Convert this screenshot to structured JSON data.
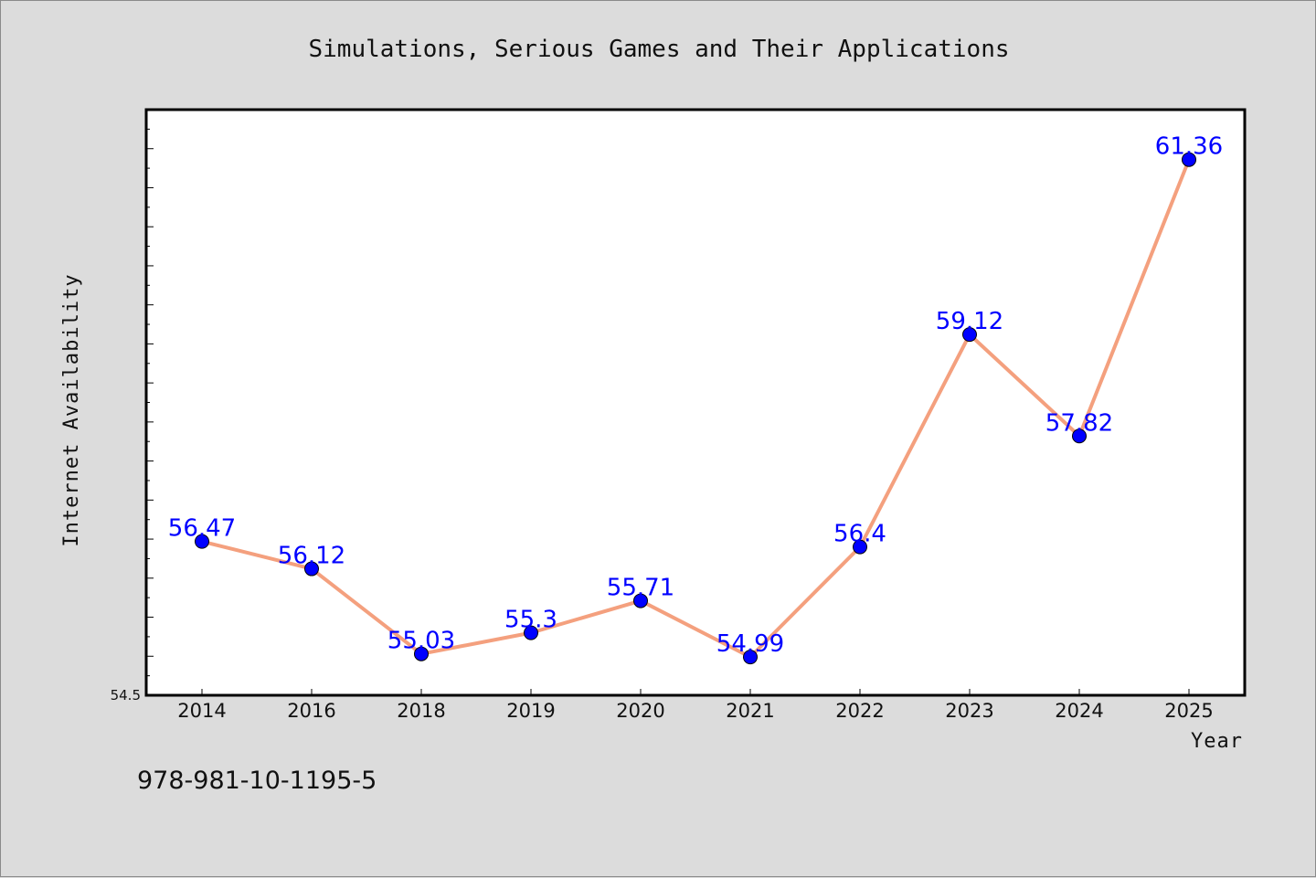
{
  "chart_data": {
    "type": "line",
    "title": "Simulations, Serious Games and Their Applications",
    "xlabel": "Year",
    "ylabel": "Internet Availability",
    "categories": [
      "2014",
      "2016",
      "2018",
      "2019",
      "2020",
      "2021",
      "2022",
      "2023",
      "2024",
      "2025"
    ],
    "values": [
      56.47,
      56.12,
      55.03,
      55.3,
      55.71,
      54.99,
      56.4,
      59.12,
      57.82,
      61.36
    ],
    "data_labels": [
      "56.47",
      "56.12",
      "55.03",
      "55.3",
      "55.71",
      "54.99",
      "56.4",
      "59.12",
      "57.82",
      "61.36"
    ],
    "ylim": [
      54.5,
      62.0
    ],
    "ytick_labels": [
      "54.5"
    ],
    "grid": false,
    "line_color": "#f4a07e",
    "marker_color": "#0000ff",
    "label_color": "#0000ff"
  },
  "footer": {
    "isbn": "978-981-10-1195-5"
  }
}
